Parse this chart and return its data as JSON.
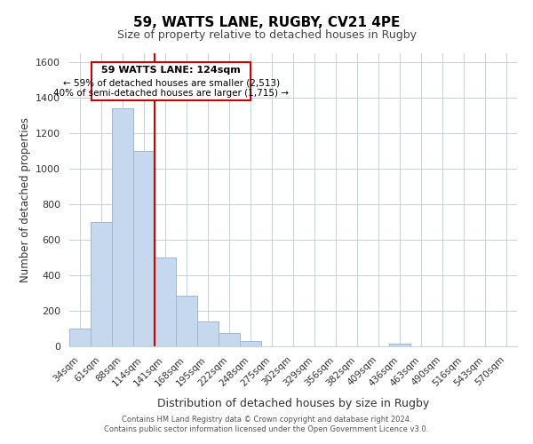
{
  "title": "59, WATTS LANE, RUGBY, CV21 4PE",
  "subtitle": "Size of property relative to detached houses in Rugby",
  "xlabel": "Distribution of detached houses by size in Rugby",
  "ylabel": "Number of detached properties",
  "categories": [
    "34sqm",
    "61sqm",
    "88sqm",
    "114sqm",
    "141sqm",
    "168sqm",
    "195sqm",
    "222sqm",
    "248sqm",
    "275sqm",
    "302sqm",
    "329sqm",
    "356sqm",
    "382sqm",
    "409sqm",
    "436sqm",
    "463sqm",
    "490sqm",
    "516sqm",
    "543sqm",
    "570sqm"
  ],
  "values": [
    100,
    700,
    1340,
    1100,
    500,
    285,
    140,
    75,
    30,
    0,
    0,
    0,
    0,
    0,
    0,
    15,
    0,
    0,
    0,
    0,
    0
  ],
  "bar_color": "#c5d8ed",
  "bar_edge_color": "#9bb8d4",
  "property_line_color": "#cc0000",
  "ylim": [
    0,
    1650
  ],
  "yticks": [
    0,
    200,
    400,
    600,
    800,
    1000,
    1200,
    1400,
    1600
  ],
  "annotation_title": "59 WATTS LANE: 124sqm",
  "annotation_line1": "← 59% of detached houses are smaller (2,513)",
  "annotation_line2": "40% of semi-detached houses are larger (1,715) →",
  "annotation_box_color": "#ffffff",
  "annotation_box_edge": "#cc0000",
  "footer1": "Contains HM Land Registry data © Crown copyright and database right 2024.",
  "footer2": "Contains public sector information licensed under the Open Government Licence v3.0.",
  "background_color": "#ffffff",
  "grid_color": "#c8d4e0"
}
